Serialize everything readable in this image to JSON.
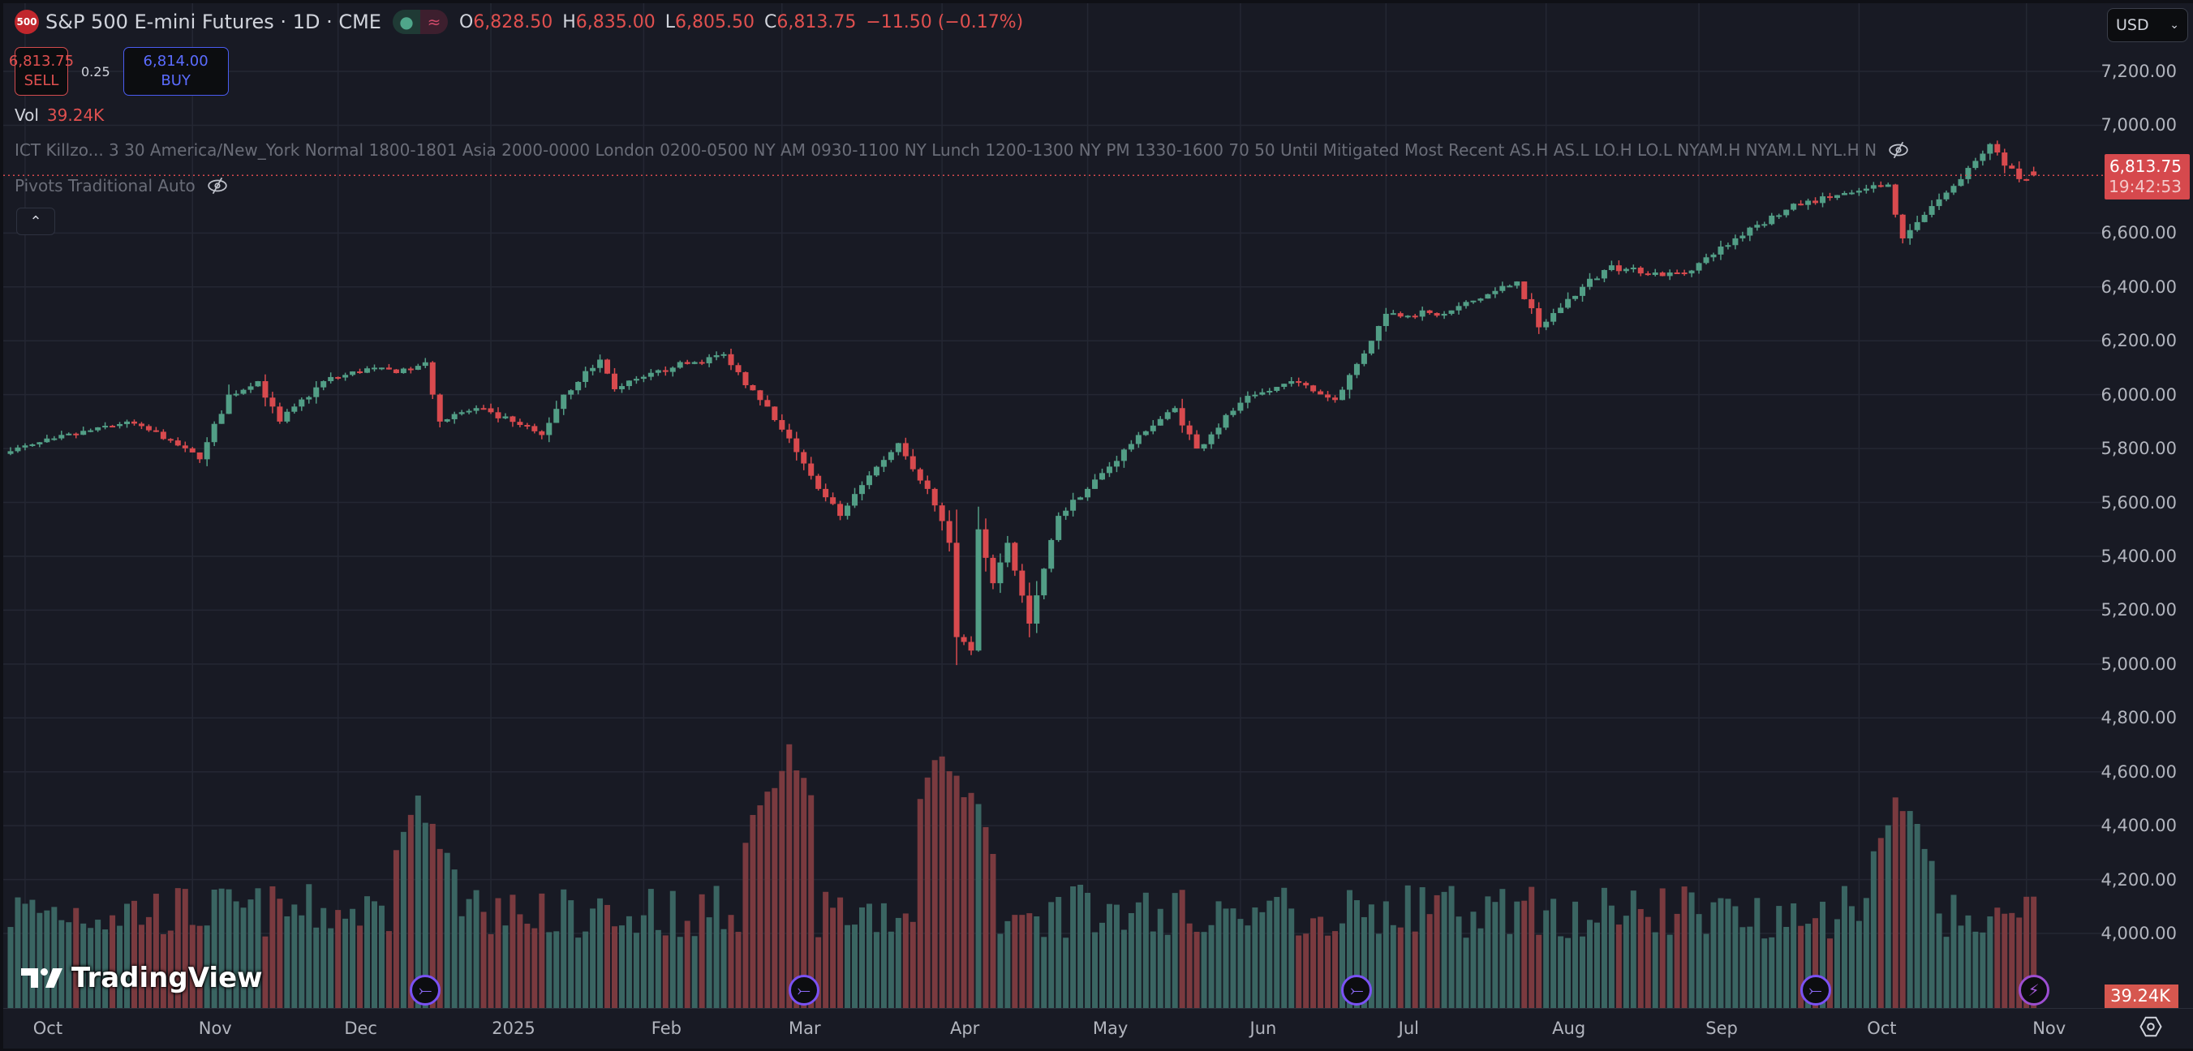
{
  "header": {
    "logo": "500",
    "title": "S&P 500 E-mini Futures · 1D · CME",
    "status_icons": [
      "market-open-dot",
      "delayed-data-icon"
    ],
    "ohlc": [
      {
        "k": "O",
        "v": "6,828.50"
      },
      {
        "k": "H",
        "v": "6,835.00"
      },
      {
        "k": "L",
        "v": "6,805.50"
      },
      {
        "k": "C",
        "v": "6,813.75"
      },
      {
        "k": "",
        "v": "−11.50 (−0.17%)"
      }
    ]
  },
  "trade": {
    "sell_price": "6,813.75",
    "sell_label": "SELL",
    "spread": "0.25",
    "buy_price": "6,814.00",
    "buy_label": "BUY"
  },
  "volume_legend": {
    "label": "Vol",
    "value": "39.24K"
  },
  "indicators": [
    {
      "text": "ICT Killzo...  3 30 America/New_York Normal 1800-1801 Asia 2000-0000 London 0200-0500 NY AM 0930-1100 NY Lunch 1200-1300 NY PM 1330-1600 70 50 Until Mitigated Most Recent AS.H AS.L LO.H LO.L NYAM.H NYAM.L NYL.H N"
    },
    {
      "text": "Pivots Traditional Auto"
    }
  ],
  "currency": "USD",
  "price_axis": [
    "7,200.00",
    "7,000.00",
    "6,600.00",
    "6,400.00",
    "6,200.00",
    "6,000.00",
    "5,800.00",
    "5,600.00",
    "5,400.00",
    "5,200.00",
    "5,000.00",
    "4,800.00",
    "4,600.00",
    "4,400.00",
    "4,200.00",
    "4,000.00"
  ],
  "last_price": {
    "price": "6,813.75",
    "countdown": "19:42:53"
  },
  "last_volume": "39.24K",
  "time_axis": [
    "Oct",
    "Nov",
    "Dec",
    "2025",
    "Feb",
    "Mar",
    "Apr",
    "May",
    "Jun",
    "Jul",
    "Aug",
    "Sep",
    "Oct",
    "Nov"
  ],
  "brand": "TradingView",
  "colors": {
    "up": "#529e86",
    "down": "#d84a4e",
    "vol_up": "#3a6562",
    "vol_down": "#7a3a3f",
    "grid": "#242733",
    "event": "#7a52f4"
  },
  "chart_data": {
    "type": "candlestick",
    "y_range": [
      4000,
      7200
    ],
    "last_close": 6813.75,
    "bars": 279,
    "month_tick_day": [
      2,
      25,
      45,
      66,
      87,
      106,
      128,
      148,
      169,
      189,
      211,
      232,
      254,
      277
    ],
    "close_keyframes": [
      [
        0,
        5790
      ],
      [
        16,
        5900
      ],
      [
        22,
        5830
      ],
      [
        26,
        5760
      ],
      [
        30,
        6000
      ],
      [
        34,
        6050
      ],
      [
        37,
        5900
      ],
      [
        43,
        6050
      ],
      [
        50,
        6100
      ],
      [
        53,
        6080
      ],
      [
        57,
        6120
      ],
      [
        59,
        5900
      ],
      [
        64,
        5950
      ],
      [
        73,
        5850
      ],
      [
        76,
        6000
      ],
      [
        81,
        6130
      ],
      [
        83,
        6020
      ],
      [
        91,
        6100
      ],
      [
        98,
        6150
      ],
      [
        103,
        5980
      ],
      [
        106,
        5870
      ],
      [
        111,
        5650
      ],
      [
        114,
        5550
      ],
      [
        118,
        5700
      ],
      [
        122,
        5820
      ],
      [
        126,
        5650
      ],
      [
        129,
        5450
      ],
      [
        130,
        5100
      ],
      [
        132,
        5050
      ],
      [
        133,
        5500
      ],
      [
        135,
        5300
      ],
      [
        137,
        5450
      ],
      [
        140,
        5150
      ],
      [
        144,
        5550
      ],
      [
        148,
        5650
      ],
      [
        155,
        5850
      ],
      [
        160,
        5950
      ],
      [
        163,
        5800
      ],
      [
        169,
        5970
      ],
      [
        176,
        6050
      ],
      [
        182,
        5980
      ],
      [
        187,
        6200
      ],
      [
        189,
        6300
      ],
      [
        197,
        6300
      ],
      [
        207,
        6420
      ],
      [
        210,
        6250
      ],
      [
        216,
        6400
      ],
      [
        220,
        6480
      ],
      [
        224,
        6450
      ],
      [
        230,
        6450
      ],
      [
        234,
        6520
      ],
      [
        239,
        6620
      ],
      [
        247,
        6720
      ],
      [
        253,
        6750
      ],
      [
        258,
        6780
      ],
      [
        260,
        6580
      ],
      [
        264,
        6700
      ],
      [
        268,
        6800
      ],
      [
        272,
        6930
      ],
      [
        276,
        6800
      ],
      [
        278,
        6813.75
      ]
    ],
    "volume_spikes_k": [
      [
        56,
        70
      ],
      [
        58,
        62
      ],
      [
        104,
        75
      ],
      [
        107,
        88
      ],
      [
        128,
        88
      ],
      [
        130,
        80
      ],
      [
        132,
        72
      ],
      [
        259,
        70
      ],
      [
        261,
        65
      ]
    ],
    "volume_base_k": 35,
    "events": [
      {
        "day": 57,
        "type": "dividend"
      },
      {
        "day": 109,
        "type": "dividend"
      },
      {
        "day": 185,
        "type": "dividend"
      },
      {
        "day": 248,
        "type": "dividend"
      },
      {
        "day": 278,
        "type": "earnings"
      }
    ]
  }
}
